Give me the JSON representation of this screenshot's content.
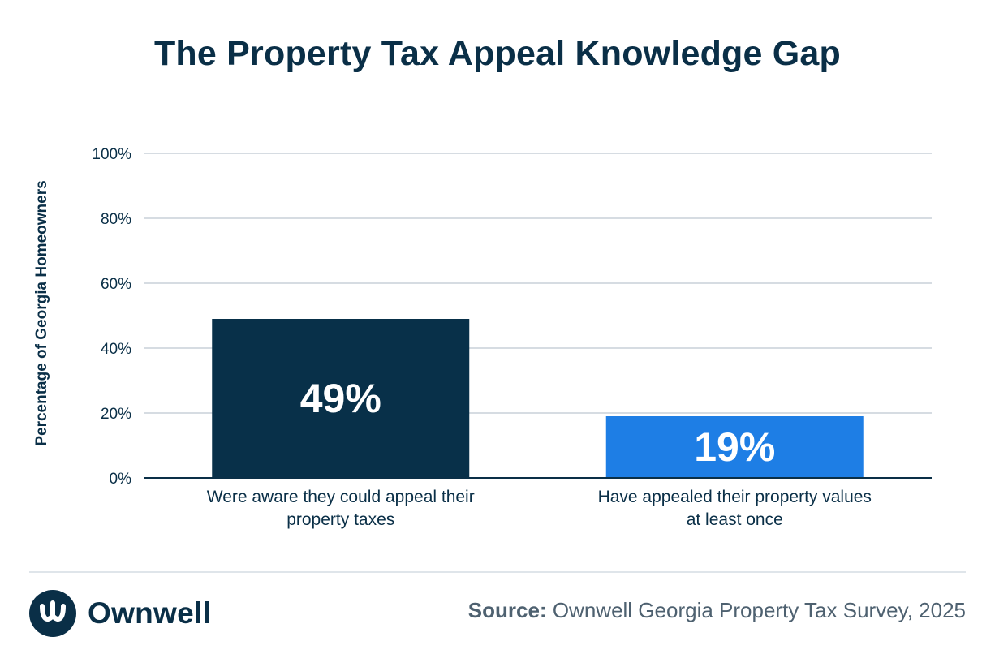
{
  "header": {
    "title": "The Property Tax Appeal Knowledge Gap"
  },
  "chart_data": {
    "type": "bar",
    "title": "The Property Tax Appeal Knowledge Gap",
    "ylabel": "Percentage of Georgia Homeowners",
    "xlabel": "",
    "ylim": [
      0,
      100
    ],
    "yticks": [
      "0%",
      "20%",
      "40%",
      "60%",
      "80%",
      "100%"
    ],
    "ytick_values": [
      0,
      20,
      40,
      60,
      80,
      100
    ],
    "grid": true,
    "categories": [
      [
        "Were aware they could appeal their",
        "property taxes"
      ],
      [
        "Have appealed their property values",
        "at least once"
      ]
    ],
    "values": [
      49,
      19
    ],
    "data_labels": [
      "49%",
      "19%"
    ],
    "colors": [
      "#083049",
      "#1e7ee5"
    ]
  },
  "footer": {
    "brand": "Ownwell",
    "source_label": "Source:",
    "source_text": "Ownwell Georgia Property Tax Survey, 2025"
  }
}
